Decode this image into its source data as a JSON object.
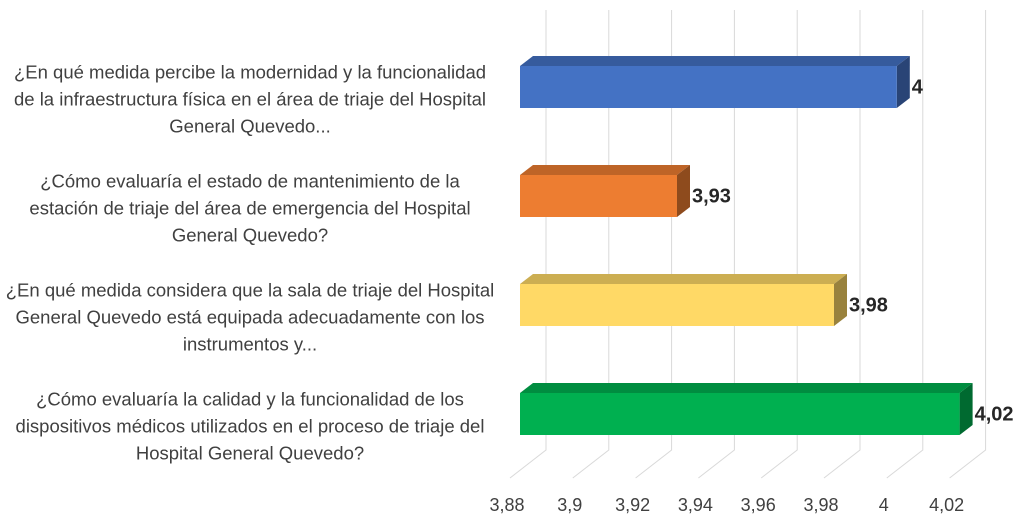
{
  "chart_data": {
    "type": "bar3d",
    "categories": [
      "¿En qué medida percibe la modernidad y la funcionalidad de la infraestructura física en el área de triaje del Hospital General Quevedo...",
      "¿Cómo evaluaría el estado de mantenimiento de la estación de triaje del área de emergencia del Hospital General Quevedo?",
      "¿En qué medida considera que la sala de triaje del Hospital General Quevedo está equipada adecuadamente con los instrumentos y...",
      "¿Cómo evaluaría la calidad y la funcionalidad de los dispositivos médicos utilizados en el proceso de triaje del Hospital General Quevedo?"
    ],
    "values": [
      4,
      3.93,
      3.98,
      4.02
    ],
    "value_labels": [
      "4",
      "3,93",
      "3,98",
      "4,02"
    ],
    "colors": [
      "#4472c4",
      "#ed7d31",
      "#ffd966",
      "#00b050"
    ],
    "xlim": [
      3.88,
      4.02
    ],
    "xticks": [
      {
        "value": 3.88,
        "label": "3,88"
      },
      {
        "value": 3.9,
        "label": "3,9"
      },
      {
        "value": 3.92,
        "label": "3,92"
      },
      {
        "value": 3.94,
        "label": "3,94"
      },
      {
        "value": 3.96,
        "label": "3,96"
      },
      {
        "value": 3.98,
        "label": "3,98"
      },
      4,
      {
        "value": 4.02,
        "label": "4,02"
      }
    ],
    "grid": true
  }
}
